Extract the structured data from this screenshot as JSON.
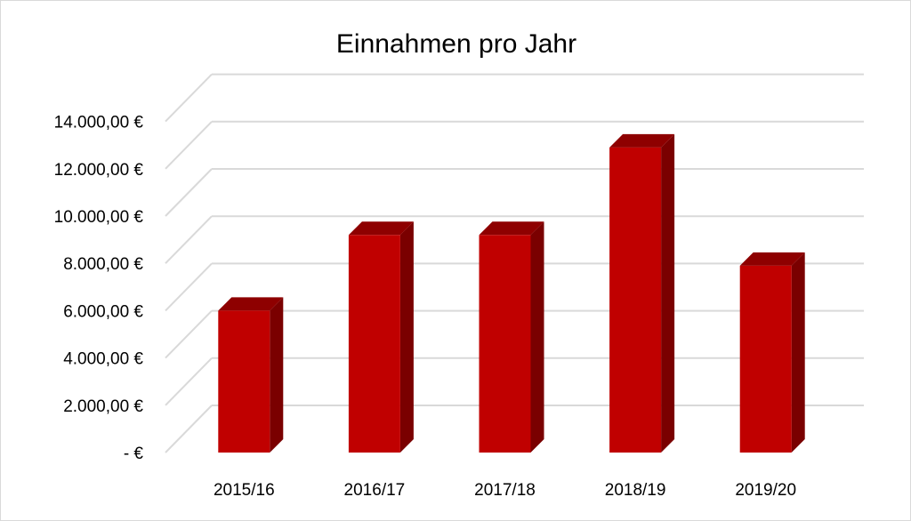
{
  "chart_data": {
    "type": "bar",
    "style": "3d-column",
    "title": "Einnahmen pro Jahr",
    "categories": [
      "2015/16",
      "2016/17",
      "2017/18",
      "2018/19",
      "2019/20"
    ],
    "values": [
      6000,
      9200,
      9200,
      12900,
      7900
    ],
    "ylim": [
      0,
      14000
    ],
    "y_ticks": [
      {
        "value": 0,
        "label": "-  €"
      },
      {
        "value": 2000,
        "label": "2.000,00 €"
      },
      {
        "value": 4000,
        "label": "4.000,00 €"
      },
      {
        "value": 6000,
        "label": "6.000,00 €"
      },
      {
        "value": 8000,
        "label": "8.000,00 €"
      },
      {
        "value": 10000,
        "label": "10.000,00 €"
      },
      {
        "value": 12000,
        "label": "12.000,00 €"
      },
      {
        "value": 14000,
        "label": "14.000,00 €"
      }
    ],
    "grid": true,
    "legend": "none",
    "colors": {
      "front": "#c00000",
      "side": "#7a0000",
      "top": "#8e0000",
      "grid": "#d9d9d9"
    }
  }
}
